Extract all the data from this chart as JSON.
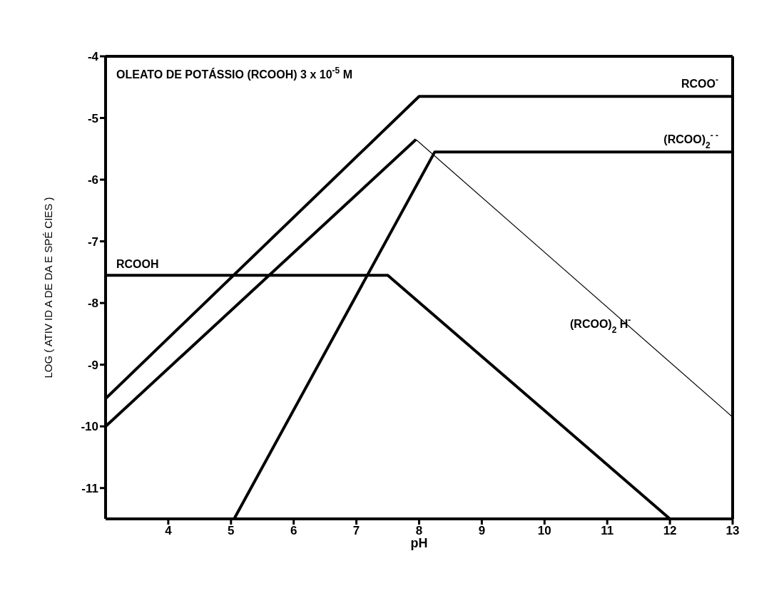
{
  "chart_data": {
    "type": "line",
    "title": "OLEATO DE POTÁSSIO (RCOOH) 3 x 10$^{-5}$ M",
    "xlabel": "pH",
    "ylabel": "LOG ( ATIV ID A DE DA E SPÉ CIES )",
    "series": [
      {
        "name": "RCOO$^{-}$",
        "color": "#000000",
        "x": [
          3,
          8,
          13
        ],
        "values": [
          -9.55,
          -4.65,
          -4.65
        ]
      },
      {
        "name": "(RCOO)$_{2}$$^{- -}$",
        "color": "#000000",
        "x": [
          5.05,
          8.25,
          13
        ],
        "values": [
          -11.5,
          -5.55,
          -5.55
        ]
      },
      {
        "color": "#000000",
        "x": [
          3,
          7.95
        ],
        "values": [
          -10,
          -5.35
        ]
      },
      {
        "name": "(RCOO)$_{2}$ H$^{-}$",
        "color": "#000000",
        "x": [
          7.95,
          13
        ],
        "values": [
          -5.35,
          -9.85
        ]
      },
      {
        "name": "RCOOH",
        "color": "#000000",
        "x": [
          3,
          7.5,
          12
        ],
        "values": [
          -7.55,
          -7.55,
          -11.5
        ]
      }
    ],
    "xlim": [
      3,
      13
    ],
    "xticks": [
      4,
      5,
      6,
      7,
      8,
      9,
      10,
      11,
      12,
      13
    ],
    "ylim": [
      -11.5,
      -4
    ],
    "yticks": [
      -4,
      -5,
      -6,
      -7,
      -8,
      -9,
      -10,
      -11
    ],
    "legend": false,
    "marker": "none",
    "line_style": "solid"
  }
}
